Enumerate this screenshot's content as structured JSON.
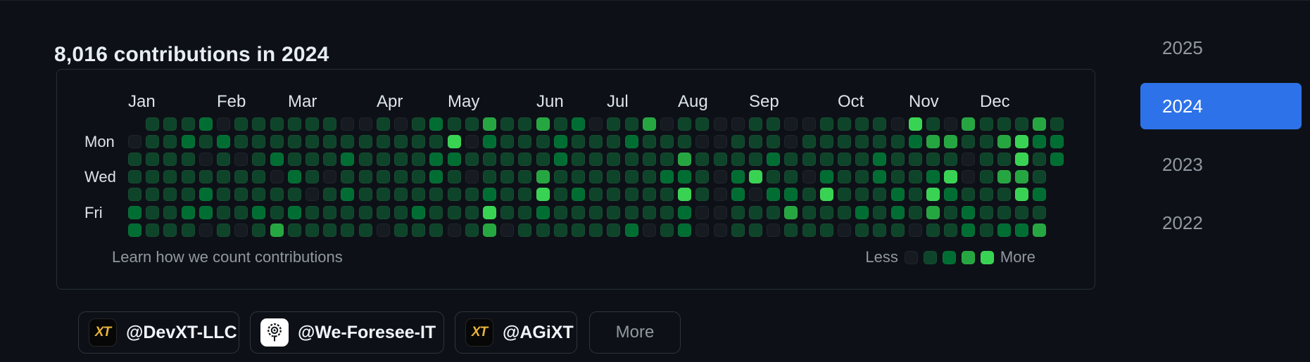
{
  "header": {
    "title": "8,016 contributions in 2024"
  },
  "calendar": {
    "months": [
      {
        "label": "Jan",
        "week": 0
      },
      {
        "label": "Feb",
        "week": 5
      },
      {
        "label": "Mar",
        "week": 9
      },
      {
        "label": "Apr",
        "week": 14
      },
      {
        "label": "May",
        "week": 18
      },
      {
        "label": "Jun",
        "week": 23
      },
      {
        "label": "Jul",
        "week": 27
      },
      {
        "label": "Aug",
        "week": 31
      },
      {
        "label": "Sep",
        "week": 35
      },
      {
        "label": "Oct",
        "week": 40
      },
      {
        "label": "Nov",
        "week": 44
      },
      {
        "label": "Dec",
        "week": 48
      }
    ],
    "day_labels": [
      {
        "label": "Mon",
        "row": 1
      },
      {
        "label": "Wed",
        "row": 3
      },
      {
        "label": "Fri",
        "row": 5
      }
    ],
    "level_colors": [
      "#161b22",
      "#0e4429",
      "#006d32",
      "#26a641",
      "#39d353"
    ],
    "weeks": [
      "-011122",
      "1111111",
      "1111111",
      "1211121",
      "2101220",
      "0211111",
      "1101110",
      "1111121",
      "1120113",
      "1112121",
      "1111011",
      "1110111",
      "0121211",
      "0111111",
      "1111110",
      "0111111",
      "1111121",
      "2122111",
      "1421110",
      "1010111",
      "3211243",
      "1111110",
      "1111111",
      "3113421",
      "1221111",
      "2111211",
      "0111111",
      "1111111",
      "1211112",
      "3111110",
      "0112111",
      "1132422",
      "1011100",
      "0010000",
      "0112211",
      "1114011",
      "1121210",
      "0011231",
      "0110111",
      "1112411",
      "1111110",
      "1111121",
      "1122111",
      "0111221",
      "4211110",
      "1312431",
      "0314211",
      "3100122",
      "1111111",
      "1313112",
      "1443412",
      "3211213",
      "122----"
    ],
    "footer": {
      "learn_link": "Learn how we count contributions",
      "less_label": "Less",
      "more_label": "More"
    }
  },
  "org_filters": [
    {
      "label": "@DevXT-LLC",
      "avatar_style": "dark",
      "avatar_text": "XT"
    },
    {
      "label": "@We-Foresee-IT",
      "avatar_style": "light-emblem"
    },
    {
      "label": "@AGiXT",
      "avatar_style": "dark",
      "avatar_text": "XT"
    },
    {
      "label": "More",
      "avatar_style": "none"
    }
  ],
  "year_list": [
    {
      "label": "2025",
      "selected": false
    },
    {
      "label": "2024",
      "selected": true
    },
    {
      "label": "2023",
      "selected": false
    },
    {
      "label": "2022",
      "selected": false
    }
  ],
  "colors": {
    "background": "#0d1117",
    "accent_blue": "#2d72e9",
    "muted_text": "#9198a1",
    "gold_logo": "#e8b339"
  }
}
